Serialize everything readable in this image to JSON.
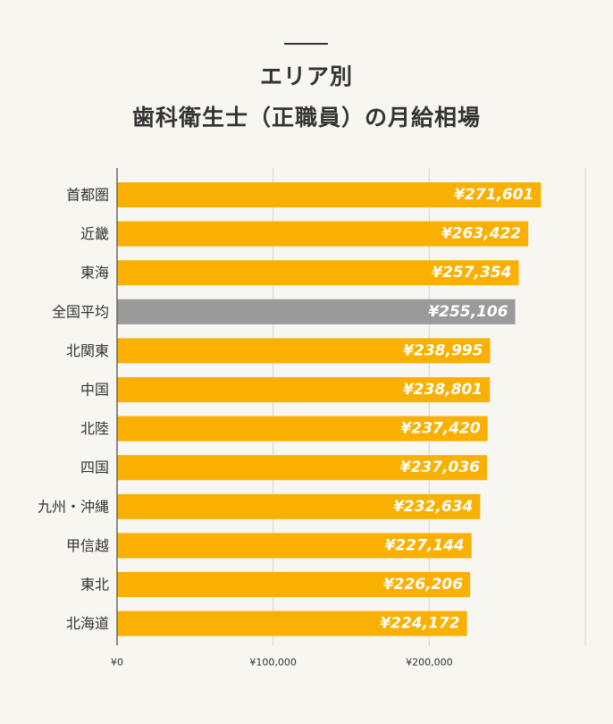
{
  "title_lines": [
    "エリア別",
    "歯科衛生士（正職員）の月給相場"
  ],
  "chart_data": {
    "type": "bar",
    "orientation": "horizontal",
    "categories": [
      "首都圏",
      "近畿",
      "東海",
      "全国平均",
      "北関東",
      "中国",
      "北陸",
      "四国",
      "九州・沖縄",
      "甲信越",
      "東北",
      "北海道"
    ],
    "values": [
      271601,
      263422,
      257354,
      255106,
      238995,
      238801,
      237420,
      237036,
      232634,
      227144,
      226206,
      224172
    ],
    "value_labels": [
      "¥271,601",
      "¥263,422",
      "¥257,354",
      "¥255,106",
      "¥238,995",
      "¥238,801",
      "¥237,420",
      "¥237,036",
      "¥232,634",
      "¥227,144",
      "¥226,206",
      "¥224,172"
    ],
    "highlight_category": "全国平均",
    "xlim": [
      0,
      300000
    ],
    "xticks": [
      0,
      100000,
      200000
    ],
    "xtick_labels": [
      "¥0",
      "¥100,000",
      "¥200,000"
    ],
    "grid": true,
    "colors": {
      "bar": "#f9b000",
      "highlight": "#9a9a9a",
      "grid": "#d4d4d4",
      "axis": "#666666",
      "background": "#f8f6f0"
    }
  }
}
